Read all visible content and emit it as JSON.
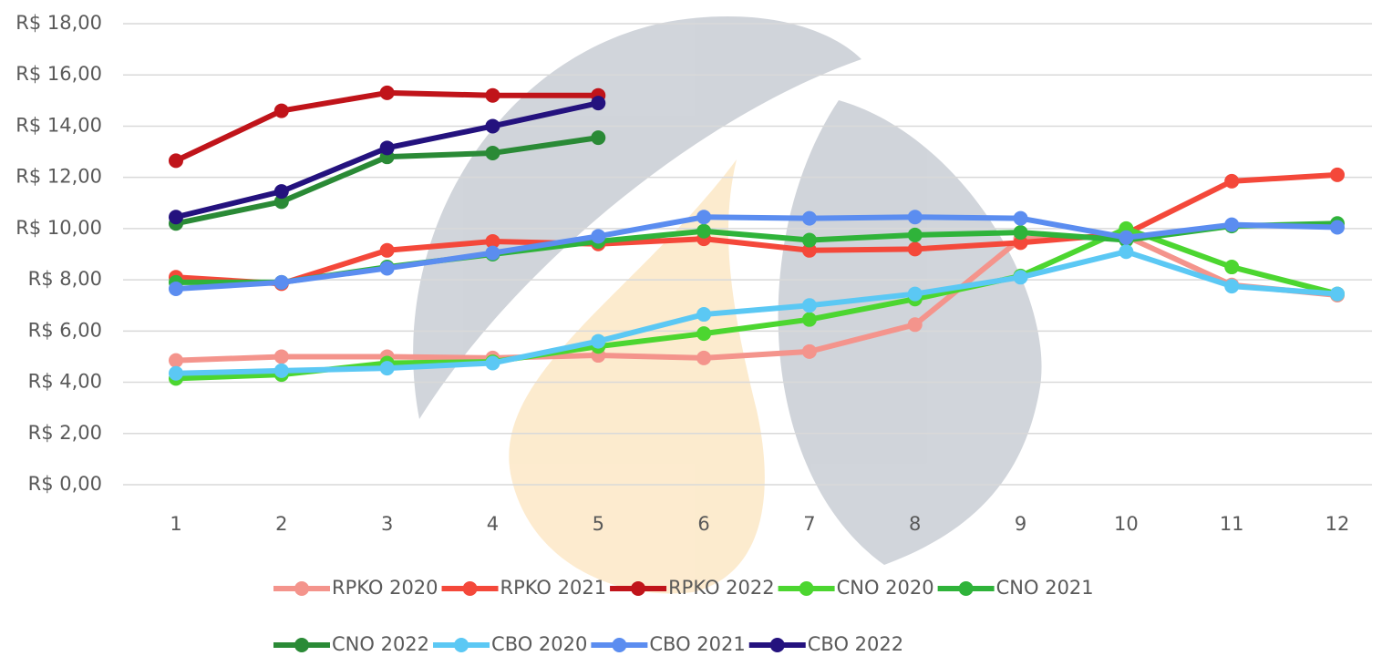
{
  "chart_data": {
    "type": "line",
    "categories": [
      1,
      2,
      3,
      4,
      5,
      6,
      7,
      8,
      9,
      10,
      11,
      12
    ],
    "ylim": [
      0,
      18
    ],
    "yticks": [
      {
        "value": 0,
        "label": "R$ 0,00"
      },
      {
        "value": 2,
        "label": "R$ 2,00"
      },
      {
        "value": 4,
        "label": "R$ 4,00"
      },
      {
        "value": 6,
        "label": "R$ 6,00"
      },
      {
        "value": 8,
        "label": "R$ 8,00"
      },
      {
        "value": 10,
        "label": "R$ 10,00"
      },
      {
        "value": 12,
        "label": "R$ 12,00"
      },
      {
        "value": 14,
        "label": "R$ 14,00"
      },
      {
        "value": 16,
        "label": "R$ 16,00"
      },
      {
        "value": 18,
        "label": "R$ 18,00"
      }
    ],
    "grid": true,
    "legend": "bottom",
    "series": [
      {
        "name": "RPKO 2020",
        "color": "#f4948c",
        "values": [
          4.85,
          5.0,
          5.0,
          4.95,
          5.05,
          4.95,
          5.2,
          6.25,
          9.6,
          9.7,
          7.8,
          7.4
        ]
      },
      {
        "name": "RPKO 2021",
        "color": "#f4483a",
        "values": [
          8.1,
          7.85,
          9.15,
          9.5,
          9.4,
          9.6,
          9.15,
          9.2,
          9.45,
          9.8,
          11.85,
          12.1
        ]
      },
      {
        "name": "RPKO 2022",
        "color": "#c0141a",
        "values": [
          12.65,
          14.6,
          15.3,
          15.2,
          15.2,
          null,
          null,
          null,
          null,
          null,
          null,
          null
        ]
      },
      {
        "name": "CNO 2020",
        "color": "#4cd630",
        "values": [
          4.15,
          4.3,
          4.75,
          4.8,
          5.4,
          5.9,
          6.45,
          7.25,
          8.15,
          10.0,
          8.5,
          7.45
        ]
      },
      {
        "name": "CNO 2021",
        "color": "#2fb33a",
        "values": [
          7.9,
          7.9,
          8.5,
          9.0,
          9.5,
          9.9,
          9.55,
          9.75,
          9.85,
          9.55,
          10.1,
          10.2
        ]
      },
      {
        "name": "CNO 2022",
        "color": "#2a8a36",
        "values": [
          10.2,
          11.05,
          12.8,
          12.95,
          13.55,
          null,
          null,
          null,
          null,
          null,
          null,
          null
        ]
      },
      {
        "name": "CBO 2020",
        "color": "#5bc8f4",
        "values": [
          4.35,
          4.45,
          4.55,
          4.75,
          5.6,
          6.65,
          7.0,
          7.45,
          8.1,
          9.1,
          7.75,
          7.45
        ]
      },
      {
        "name": "CBO 2021",
        "color": "#5b8df0",
        "values": [
          7.65,
          7.9,
          8.45,
          9.05,
          9.7,
          10.45,
          10.4,
          10.45,
          10.4,
          9.65,
          10.15,
          10.05
        ]
      },
      {
        "name": "CBO 2022",
        "color": "#24127e",
        "values": [
          10.45,
          11.45,
          13.15,
          14.0,
          14.9,
          null,
          null,
          null,
          null,
          null,
          null,
          null
        ]
      }
    ]
  }
}
